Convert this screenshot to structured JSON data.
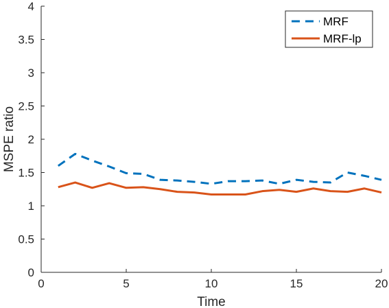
{
  "chart_data": {
    "type": "line",
    "xlabel": "Time",
    "ylabel": "MSPE ratio",
    "xlim": [
      0,
      20
    ],
    "ylim": [
      0,
      4
    ],
    "xticks": [
      0,
      5,
      10,
      15,
      20
    ],
    "yticks": [
      0,
      0.5,
      1,
      1.5,
      2,
      2.5,
      3,
      3.5,
      4
    ],
    "xtick_labels": [
      "0",
      "5",
      "10",
      "15",
      "20"
    ],
    "ytick_labels": [
      "0",
      "0.5",
      "1",
      "1.5",
      "2",
      "2.5",
      "3",
      "3.5",
      "4"
    ],
    "grid": false,
    "legend_position": "top-right",
    "x": [
      1,
      2,
      3,
      4,
      5,
      6,
      7,
      8,
      9,
      10,
      11,
      12,
      13,
      14,
      15,
      16,
      17,
      18,
      19,
      20
    ],
    "series": [
      {
        "name": "MRF",
        "color": "#0072BD",
        "line_style": "dashed",
        "values": [
          1.6,
          1.78,
          1.68,
          1.59,
          1.49,
          1.48,
          1.39,
          1.38,
          1.36,
          1.33,
          1.37,
          1.37,
          1.38,
          1.33,
          1.39,
          1.36,
          1.35,
          1.5,
          1.45,
          1.39
        ]
      },
      {
        "name": "MRF-lp",
        "color": "#D95319",
        "line_style": "solid",
        "values": [
          1.28,
          1.35,
          1.27,
          1.34,
          1.27,
          1.28,
          1.25,
          1.21,
          1.2,
          1.17,
          1.17,
          1.17,
          1.22,
          1.24,
          1.21,
          1.26,
          1.22,
          1.21,
          1.26,
          1.2
        ]
      }
    ]
  }
}
